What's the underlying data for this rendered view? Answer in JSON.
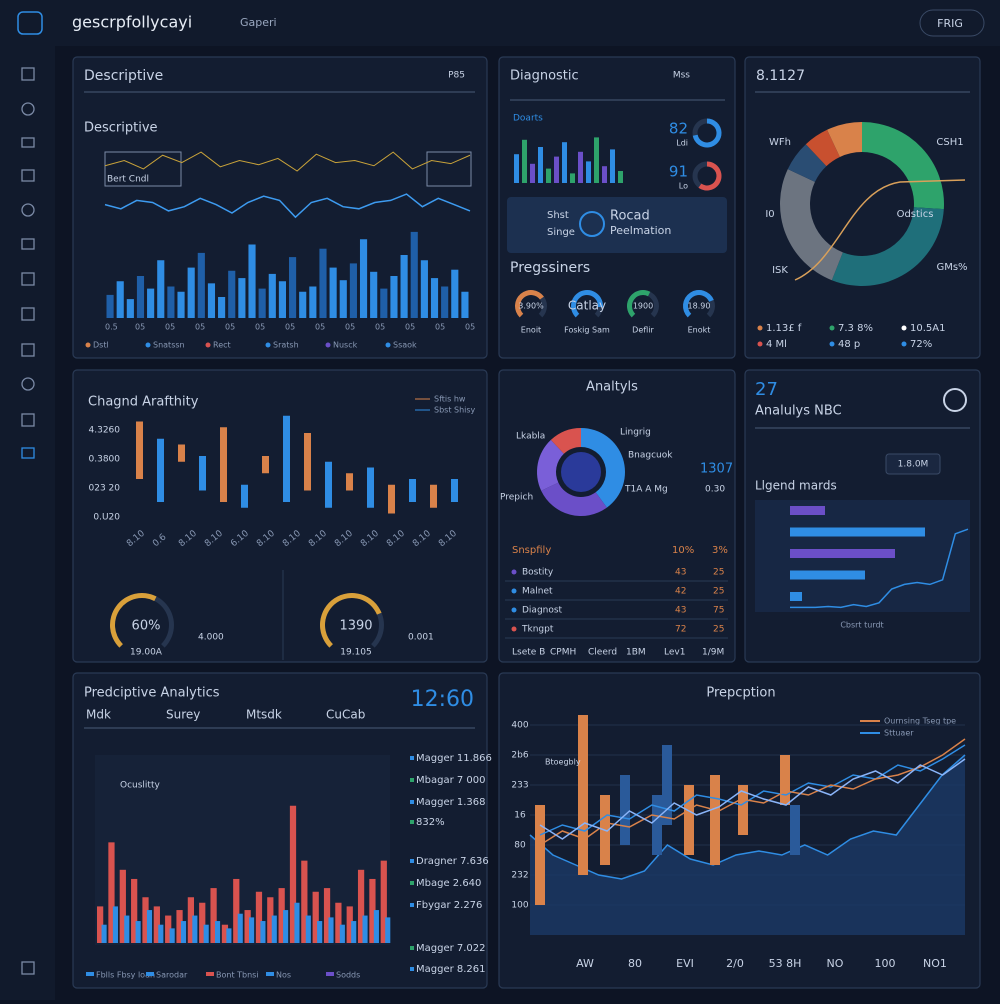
{
  "topbar": {
    "app_name": "gescrpfollycayi",
    "tab": "Gaperi",
    "button": "FRIG"
  },
  "descriptive": {
    "title": "Descriptive",
    "action": "P85",
    "subtitle": "Descriptive",
    "inset_label": "Bert Cndl",
    "ylim": [
      0,
      160
    ],
    "bars": [
      22,
      35,
      18,
      40,
      28,
      55,
      30,
      25,
      48,
      62,
      33,
      20,
      45,
      38,
      70,
      28,
      42,
      35,
      58,
      25,
      30,
      66,
      48,
      36,
      52,
      75,
      44,
      28,
      40,
      60,
      82,
      55,
      38,
      30,
      46,
      25
    ],
    "line": [
      108,
      104,
      112,
      110,
      102,
      106,
      114,
      108,
      100,
      110,
      116,
      112,
      96,
      110,
      114,
      106,
      104,
      110,
      112,
      118,
      106,
      114,
      108,
      102
    ],
    "top_line": [
      145,
      150,
      142,
      155,
      148,
      158,
      144,
      150,
      146,
      152,
      140,
      156,
      148,
      150,
      145,
      158,
      142,
      150,
      147,
      155
    ],
    "x_labels": [
      "0.5",
      "05",
      "05",
      "05",
      "05",
      "05",
      "05",
      "05",
      "05",
      "05",
      "05",
      "05",
      "05"
    ],
    "legend": [
      {
        "name": "Dstl",
        "color": "#d9824a"
      },
      {
        "name": "Snatssn",
        "color": "#2f8de4"
      },
      {
        "name": "Rect",
        "color": "#d9534f"
      },
      {
        "name": "Sratsh",
        "color": "#2f8de4"
      },
      {
        "name": "Nusck",
        "color": "#6b4fc8"
      },
      {
        "name": "Ssaok",
        "color": "#2f8de4"
      }
    ]
  },
  "diagnostic": {
    "title": "Diagnostic",
    "action": "Mss",
    "mini_label": "Doarts",
    "ylim": [
      0,
      100
    ],
    "bars": [
      60,
      90,
      40,
      75,
      30,
      55,
      85,
      20,
      65,
      45,
      95,
      35,
      70,
      25
    ],
    "rings": [
      {
        "label": "82",
        "value": 72,
        "caption": "Ldi"
      },
      {
        "label": "91",
        "value": 60,
        "caption": "Lo"
      }
    ],
    "card": {
      "a": "Shst",
      "b": "Singe",
      "c": "Rocad",
      "d": "Peelmation"
    },
    "section": "Pregssiners",
    "gauges": [
      {
        "label": "3.90%",
        "caption": "Enoit",
        "value": 70
      },
      {
        "label": "Catlay",
        "caption": "Foskig Sam",
        "value": 85
      },
      {
        "label": "1900",
        "caption": "Deflir",
        "value": 60
      },
      {
        "label": "18.90",
        "caption": "Enokt",
        "value": 75
      }
    ]
  },
  "overview": {
    "title": "8.1127",
    "segments": [
      {
        "value": 26,
        "color": "#2ea36b"
      },
      {
        "value": 30,
        "color": "#1f6f7a"
      },
      {
        "value": 26,
        "color": "#6c7480"
      },
      {
        "value": 6,
        "color": "#2a4d73"
      },
      {
        "value": 5,
        "color": "#c8502f"
      },
      {
        "value": 7,
        "color": "#d9824a"
      }
    ],
    "labels": [
      "WFh",
      "CSH1",
      "I0",
      "Odstics",
      "ISK",
      "GMs%"
    ],
    "stats": [
      {
        "text": "1.13£ f",
        "color": "#d9824a"
      },
      {
        "text": "7.3 8%",
        "color": "#2ea36b"
      },
      {
        "text": "10.5A1",
        "color": "#ffffff"
      },
      {
        "text": "4 Ml",
        "color": "#d9534f"
      },
      {
        "text": "48 p",
        "color": "#2f8de4"
      },
      {
        "text": "72%",
        "color": "#2f8de4"
      }
    ]
  },
  "change": {
    "title": "Chagnd Arafthity",
    "legend": [
      "Sftis hw",
      "Sbst Shisy"
    ],
    "axis_labels": [
      "4.3260",
      "0.3800",
      "023 20",
      "0.U20"
    ],
    "ylim": [
      0,
      100
    ],
    "candles": [
      [
        40,
        90
      ],
      [
        20,
        75
      ],
      [
        55,
        70
      ],
      [
        30,
        60
      ],
      [
        20,
        85
      ],
      [
        15,
        35
      ],
      [
        45,
        60
      ],
      [
        20,
        95
      ],
      [
        30,
        80
      ],
      [
        15,
        55
      ],
      [
        30,
        45
      ],
      [
        15,
        50
      ],
      [
        10,
        35
      ],
      [
        20,
        40
      ],
      [
        15,
        35
      ],
      [
        20,
        40
      ]
    ],
    "x_labels": [
      "8.10",
      "0.6",
      "8.10",
      "8.10",
      "6.10",
      "8.10",
      "8.10",
      "8.10",
      "8.10",
      "8.10",
      "8.10",
      "8.10",
      "8.10"
    ],
    "gauges": [
      {
        "label": "60%",
        "caption": "19.00A",
        "side": "4.000",
        "value": 60
      },
      {
        "label": "1390",
        "caption": "19.105",
        "side": "0.001",
        "value": 75
      }
    ]
  },
  "analysis": {
    "title": "Analtyls",
    "segments": [
      {
        "value": 40,
        "color": "#2f8de4"
      },
      {
        "value": 28,
        "color": "#6b4fc8"
      },
      {
        "value": 20,
        "color": "#7a5fd8"
      },
      {
        "value": 12,
        "color": "#d9534f"
      }
    ],
    "labels": [
      "Lkabla",
      "Lingrig",
      "Bnagcuok",
      "Prepich",
      "1307",
      "0.30",
      "T1A A Mg"
    ],
    "table_header": [
      "Snspfily",
      "10%",
      "3%"
    ],
    "rows": [
      [
        "Bostity",
        "43",
        "25"
      ],
      [
        "Malnet",
        "42",
        "25"
      ],
      [
        "Diagnost",
        "43",
        "75"
      ],
      [
        "Tkngpt",
        "72",
        "25"
      ]
    ],
    "footer": [
      "Lsete B",
      "CPMH",
      "Cleerd",
      "1BM",
      "Lev1",
      "1/9M"
    ]
  },
  "nbc": {
    "number": "27",
    "title": "Analulys NBC",
    "button": "1.8.0M",
    "subtitle": "Llgend mards",
    "caption": "Cbsrt turdt",
    "xlim": [
      0,
      150
    ],
    "hbars": [
      {
        "value": 35,
        "color": "#6b4fc8"
      },
      {
        "value": 135,
        "color": "#2f8de4"
      },
      {
        "value": 105,
        "color": "#6b4fc8"
      },
      {
        "value": 75,
        "color": "#2f8de4"
      },
      {
        "value": 12,
        "color": "#2f8de4"
      }
    ],
    "ylim": [
      0,
      100
    ],
    "area": [
      5,
      5,
      5,
      6,
      5,
      8,
      6,
      10,
      25,
      30,
      32,
      30,
      35,
      85,
      90
    ]
  },
  "predictive": {
    "title": "Predciptive Analytics",
    "tabs": [
      "Mdk",
      "Surey",
      "Mtsdk",
      "CuCab"
    ],
    "big": "12:60",
    "note": "Ocuslitty",
    "ylim": [
      0,
      100
    ],
    "red": [
      20,
      55,
      40,
      35,
      25,
      20,
      15,
      18,
      25,
      22,
      30,
      10,
      35,
      18,
      28,
      25,
      30,
      75,
      45,
      28,
      30,
      22,
      20,
      40,
      35,
      45
    ],
    "blue": [
      10,
      20,
      15,
      12,
      18,
      10,
      8,
      12,
      15,
      10,
      12,
      8,
      16,
      14,
      12,
      15,
      18,
      22,
      15,
      12,
      14,
      10,
      12,
      15,
      18,
      14
    ],
    "side": [
      "Magger 11.866",
      "Mbagar 7 000",
      "Magger 1.368",
      "832%",
      "Dragner 7.636",
      "Mbage 2.640",
      "Fbygar 2.276",
      "Magger 7.022",
      "Magger 8.261"
    ],
    "legend": [
      "Fblls Fbsy loan",
      "Sarodar",
      "Bont Tbnsi",
      "Nos",
      "Sodds"
    ]
  },
  "perception": {
    "title": "Prepcption",
    "legend": [
      "Ournsing Tseg tpe",
      "Sttuaer"
    ],
    "note": "Btoegbly",
    "axis_labels": [
      "400",
      "2b6",
      "233",
      "16",
      "80",
      "232",
      "100"
    ],
    "x_labels": [
      "AW",
      "80",
      "EVI",
      "2/0",
      "53 8H",
      "NO",
      "100",
      "NO1"
    ],
    "ylim": [
      0,
      100
    ],
    "orange": [
      [
        5,
        55
      ],
      [
        20,
        100
      ],
      [
        30,
        65
      ],
      [
        40,
        65
      ],
      [
        25,
        60
      ],
      [
        25,
        70
      ],
      [
        55,
        80
      ]
    ],
    "blue_candles": [
      [
        30,
        60
      ],
      [
        45,
        85
      ],
      [
        30,
        55
      ],
      [
        35,
        70
      ]
    ],
    "lines": [
      {
        "color": "#2f8de4",
        "values": [
          40,
          45,
          42,
          50,
          48,
          55,
          52,
          60,
          58,
          55,
          62,
          60,
          66,
          64,
          70,
          68,
          75,
          72,
          78,
          85
        ]
      },
      {
        "color": "#d9824a",
        "values": [
          35,
          42,
          38,
          46,
          44,
          50,
          48,
          55,
          52,
          58,
          56,
          62,
          60,
          65,
          63,
          68,
          70,
          74,
          80,
          88
        ]
      },
      {
        "color": "#8ab4f8",
        "values": [
          45,
          38,
          46,
          42,
          52,
          46,
          56,
          50,
          54,
          62,
          58,
          55,
          64,
          60,
          68,
          72,
          66,
          75,
          70,
          78
        ]
      }
    ],
    "area": [
      40,
      30,
      25,
      20,
      18,
      22,
      35,
      28,
      25,
      30,
      32,
      30,
      35,
      30,
      38,
      42,
      40,
      55,
      70,
      80
    ]
  }
}
